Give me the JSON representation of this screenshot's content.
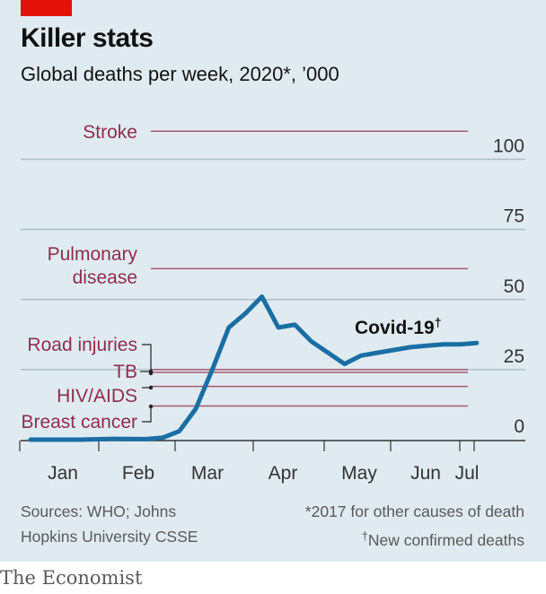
{
  "header": {
    "title": "Killer stats",
    "subtitle": "Global deaths per week, 2020*, ’000"
  },
  "footer": {
    "sources_line1": "Sources: WHO; Johns",
    "sources_line2": "Hopkins University CSSE",
    "note_line1": "*2017 for other causes of death",
    "note_line2_symbol": "†",
    "note_line2_text": "New confirmed deaths",
    "brand": "The Economist"
  },
  "colors": {
    "background": "#e0ebf1",
    "series": "#1a6ea3",
    "reference": "#a35a70",
    "reference_label": "#8f2d4c",
    "grid": "#aebfc9",
    "brand_tag": "#e3120b"
  },
  "chart_data": {
    "type": "line",
    "title": "Killer stats",
    "subtitle": "Global deaths per week, 2020*, ’000",
    "x_axis": {
      "months": [
        "Jan",
        "Feb",
        "Mar",
        "Apr",
        "May",
        "Jun",
        "Jul"
      ],
      "range_weeks": [
        1,
        28
      ]
    },
    "y_axis": {
      "ticks": [
        0,
        25,
        50,
        75,
        100
      ],
      "ylim": [
        0,
        105
      ],
      "side": "right"
    },
    "grid": true,
    "series": [
      {
        "name": "Covid-19",
        "name_superscript": "†",
        "x_week": [
          1,
          4,
          6,
          8,
          9,
          10,
          11,
          12,
          13,
          14,
          15,
          16,
          17,
          18,
          19,
          20,
          21,
          22,
          23,
          24,
          25,
          26,
          27,
          28
        ],
        "values": [
          0,
          0,
          0.3,
          0.2,
          0.7,
          3,
          11,
          25,
          40,
          45,
          51,
          40,
          41,
          35,
          31,
          27,
          30,
          31,
          32,
          33,
          33.5,
          34,
          34,
          34.5
        ]
      }
    ],
    "reference_lines": [
      {
        "label_lines": [
          "Stroke"
        ],
        "value": 110
      },
      {
        "label_lines": [
          "Pulmonary",
          "disease"
        ],
        "value": 61
      },
      {
        "label_lines": [
          "Road injuries"
        ],
        "value": 25
      },
      {
        "label_lines": [
          "TB"
        ],
        "value": 24
      },
      {
        "label_lines": [
          "HIV/AIDS"
        ],
        "value": 19
      },
      {
        "label_lines": [
          "Breast cancer"
        ],
        "value": 12
      }
    ]
  }
}
